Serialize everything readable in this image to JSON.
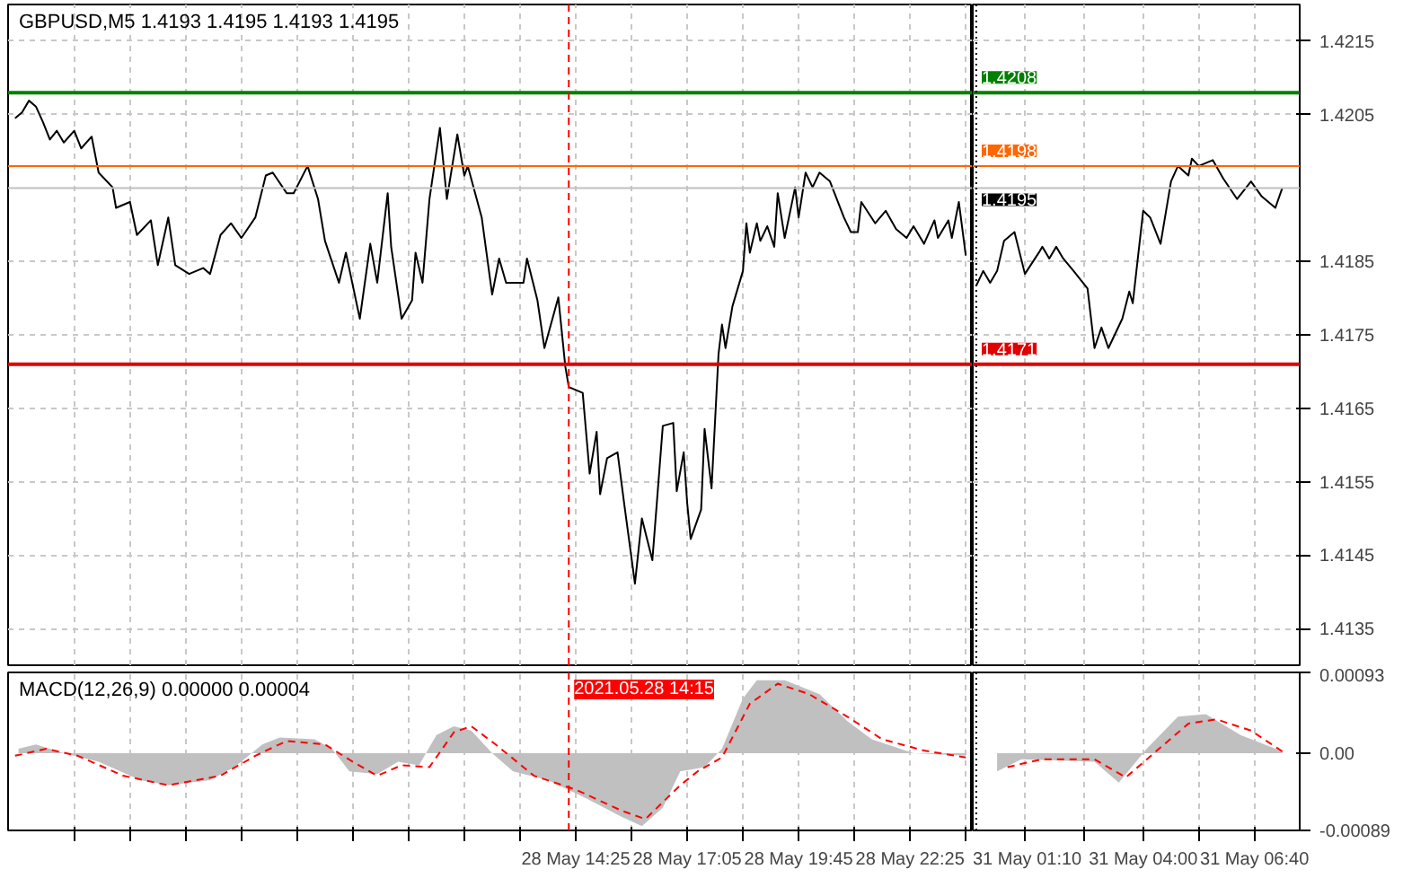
{
  "chart_data": [
    {
      "type": "line",
      "title": "GBPUSD,M5  1.4193 1.4195 1.4193 1.4195",
      "series": [
        {
          "color": "#000000",
          "line_style": "solid",
          "x": [
            "2021-05-28T01:00",
            "2021-05-28T01:10",
            "2021-05-28T01:20",
            "2021-05-28T01:30",
            "2021-05-28T01:40",
            "2021-05-28T01:50",
            "2021-05-28T02:00",
            "2021-05-28T02:10",
            "2021-05-28T02:25",
            "2021-05-28T02:35",
            "2021-05-28T02:50",
            "2021-05-28T03:00",
            "2021-05-28T03:20",
            "2021-05-28T03:25",
            "2021-05-28T03:45",
            "2021-05-28T03:55",
            "2021-05-28T04:15",
            "2021-05-28T04:25",
            "2021-05-28T04:40",
            "2021-05-28T04:50",
            "2021-05-28T05:10",
            "2021-05-28T05:30",
            "2021-05-28T05:40",
            "2021-05-28T05:55",
            "2021-05-28T06:10",
            "2021-05-28T06:25",
            "2021-05-28T06:45",
            "2021-05-28T07:00",
            "2021-05-28T07:10",
            "2021-05-28T07:30",
            "2021-05-28T07:40",
            "2021-05-28T08:00",
            "2021-05-28T08:15",
            "2021-05-28T08:25",
            "2021-05-28T08:45",
            "2021-05-28T08:55",
            "2021-05-28T09:15",
            "2021-05-28T09:30",
            "2021-05-28T09:40",
            "2021-05-28T09:55",
            "2021-05-28T10:00",
            "2021-05-28T10:15",
            "2021-05-28T10:30",
            "2021-05-28T10:35",
            "2021-05-28T10:45",
            "2021-05-28T10:55",
            "2021-05-28T11:10",
            "2021-05-28T11:20",
            "2021-05-28T11:35",
            "2021-05-28T11:45",
            "2021-05-28T11:50",
            "2021-05-28T12:10",
            "2021-05-28T12:25",
            "2021-05-28T12:35",
            "2021-05-28T12:45",
            "2021-05-28T13:10",
            "2021-05-28T13:15",
            "2021-05-28T13:30",
            "2021-05-28T13:40",
            "2021-05-28T14:00",
            "2021-05-28T14:10",
            "2021-05-28T14:15",
            "2021-05-28T14:35",
            "2021-05-28T14:45",
            "2021-05-28T14:55",
            "2021-05-28T15:00",
            "2021-05-28T15:10",
            "2021-05-28T15:25",
            "2021-05-28T15:35",
            "2021-05-28T15:50",
            "2021-05-28T16:00",
            "2021-05-28T16:15",
            "2021-05-28T16:30",
            "2021-05-28T16:45",
            "2021-05-28T16:50",
            "2021-05-28T17:00",
            "2021-05-28T17:05",
            "2021-05-28T17:10",
            "2021-05-28T17:25",
            "2021-05-28T17:30",
            "2021-05-28T17:40",
            "2021-05-28T17:50",
            "2021-05-28T17:55",
            "2021-05-28T18:00",
            "2021-05-28T18:10",
            "2021-05-28T18:25",
            "2021-05-28T18:30",
            "2021-05-28T18:35",
            "2021-05-28T18:45",
            "2021-05-28T18:50",
            "2021-05-28T19:00",
            "2021-05-28T19:10",
            "2021-05-28T19:15",
            "2021-05-28T19:25",
            "2021-05-28T19:40",
            "2021-05-28T19:45",
            "2021-05-28T19:55",
            "2021-05-28T20:05",
            "2021-05-28T20:15",
            "2021-05-28T20:30",
            "2021-05-28T20:50",
            "2021-05-28T21:00",
            "2021-05-28T21:10",
            "2021-05-28T21:15",
            "2021-05-28T21:35",
            "2021-05-28T21:50",
            "2021-05-28T22:05",
            "2021-05-28T22:20",
            "2021-05-28T22:30",
            "2021-05-28T22:45",
            "2021-05-28T23:00",
            "2021-05-28T23:05",
            "2021-05-28T23:20",
            "2021-05-28T23:25",
            "2021-05-28T23:35",
            "2021-05-28T23:45"
          ],
          "values": [
            1.42045,
            1.42053,
            1.42069,
            1.42061,
            1.4204,
            1.42016,
            1.42028,
            1.42012,
            1.42028,
            1.42004,
            1.4202,
            1.41971,
            1.41951,
            1.41923,
            1.41931,
            1.41886,
            1.41906,
            1.41845,
            1.4191,
            1.41845,
            1.41833,
            1.41841,
            1.41833,
            1.41886,
            1.41902,
            1.41882,
            1.4191,
            1.41967,
            1.41971,
            1.41943,
            1.41943,
            1.4198,
            1.41935,
            1.41878,
            1.41821,
            1.41862,
            1.41772,
            1.41874,
            1.41821,
            1.41943,
            1.4187,
            1.41772,
            1.41797,
            1.41862,
            1.41821,
            1.41935,
            1.42032,
            1.41935,
            1.42023,
            1.41967,
            1.4198,
            1.4191,
            1.41805,
            1.41854,
            1.41821,
            1.41821,
            1.41854,
            1.41797,
            1.41732,
            1.41801,
            1.41707,
            1.41679,
            1.41671,
            1.41561,
            1.41618,
            1.41533,
            1.41582,
            1.4159,
            1.41517,
            1.41411,
            1.415,
            1.41443,
            1.41626,
            1.4163,
            1.41537,
            1.4159,
            1.41521,
            1.41472,
            1.41512,
            1.41622,
            1.41541,
            1.41724,
            1.41764,
            1.41732,
            1.41789,
            1.41837,
            1.41902,
            1.41862,
            1.41902,
            1.41878,
            1.41898,
            1.4187,
            1.41943,
            1.41882,
            1.41951,
            1.4191,
            1.41971,
            1.41951,
            1.41971,
            1.41959,
            1.4191,
            1.4189,
            1.4189,
            1.41931,
            1.41902,
            1.41919,
            1.41894,
            1.41882,
            1.41898,
            1.41874,
            1.41906,
            1.41882,
            1.41906,
            1.41882,
            1.41931,
            1.41858
          ]
        }
      ],
      "xlim": [
        "2021-05-28T00:50",
        "2021-05-28T23:55"
      ],
      "ylim": [
        1.413,
        1.422
      ],
      "xticks": [
        {
          "value": "2021-05-28T02:25",
          "label": null
        },
        {
          "value": "2021-05-28T03:45",
          "label": null
        },
        {
          "value": "2021-05-28T05:05",
          "label": null
        },
        {
          "value": "2021-05-28T06:25",
          "label": null
        },
        {
          "value": "2021-05-28T07:45",
          "label": null
        },
        {
          "value": "2021-05-28T09:05",
          "label": null
        },
        {
          "value": "2021-05-28T10:25",
          "label": null
        },
        {
          "value": "2021-05-28T11:45",
          "label": null
        },
        {
          "value": "2021-05-28T13:05",
          "label": null
        },
        {
          "value": "2021-05-28T14:25",
          "label": null
        },
        {
          "value": "2021-05-28T15:45",
          "label": null
        },
        {
          "value": "2021-05-28T17:05",
          "label": null
        },
        {
          "value": "2021-05-28T18:25",
          "label": null
        },
        {
          "value": "2021-05-28T19:45",
          "label": null
        },
        {
          "value": "2021-05-28T21:05",
          "label": null
        },
        {
          "value": "2021-05-28T22:25",
          "label": null
        },
        {
          "value": "2021-05-28T23:45",
          "label": null
        }
      ],
      "yticks": [
        1.4135,
        1.4145,
        1.4155,
        1.4165,
        1.4175,
        1.4185,
        1.4205,
        1.4215
      ],
      "grid": true,
      "tick_labels": false,
      "ref_lines": [
        {
          "axis": "y",
          "value": 1.4208,
          "color": "#008000",
          "line_style": "solid"
        },
        {
          "axis": "y",
          "value": 1.4198,
          "color": "#ff6600",
          "line_style": "solid"
        },
        {
          "axis": "y",
          "value": 1.4195,
          "color": "#c0c0c0",
          "line_style": "solid"
        },
        {
          "axis": "y",
          "value": 1.4171,
          "color": "#e00000",
          "line_style": "solid"
        },
        {
          "axis": "x",
          "value": "2021-05-28T14:15",
          "color": "#ff0000",
          "line_style": "dashed"
        }
      ]
    },
    {
      "type": "line",
      "series": [
        {
          "color": "#000000",
          "line_style": "solid",
          "x": [
            "2021-05-31T00:00",
            "2021-05-31T00:10",
            "2021-05-31T00:20",
            "2021-05-31T00:30",
            "2021-05-31T00:40",
            "2021-05-31T00:55",
            "2021-05-31T01:10",
            "2021-05-31T01:30",
            "2021-05-31T01:35",
            "2021-05-31T01:45",
            "2021-05-31T01:55",
            "2021-05-31T02:05",
            "2021-05-31T02:20",
            "2021-05-31T02:40",
            "2021-05-31T02:50",
            "2021-05-31T03:00",
            "2021-05-31T03:10",
            "2021-05-31T03:30",
            "2021-05-31T03:40",
            "2021-05-31T03:45",
            "2021-05-31T04:00",
            "2021-05-31T04:10",
            "2021-05-31T04:25",
            "2021-05-31T04:40",
            "2021-05-31T04:50",
            "2021-05-31T05:05",
            "2021-05-31T05:10",
            "2021-05-31T05:20",
            "2021-05-31T05:40",
            "2021-05-31T05:55",
            "2021-05-31T06:15",
            "2021-05-31T06:35",
            "2021-05-31T06:50",
            "2021-05-31T07:10",
            "2021-05-31T07:20"
          ],
          "values": [
            1.41817,
            1.41837,
            1.41821,
            1.41837,
            1.41878,
            1.4189,
            1.41833,
            1.41862,
            1.4187,
            1.41854,
            1.4187,
            1.41854,
            1.41837,
            1.41813,
            1.41732,
            1.4176,
            1.41732,
            1.41772,
            1.41809,
            1.41793,
            1.41919,
            1.4191,
            1.41874,
            1.41959,
            1.4198,
            1.41967,
            1.4199,
            1.4198,
            1.41988,
            1.41963,
            1.41935,
            1.41959,
            1.41939,
            1.41923,
            1.4195
          ]
        }
      ],
      "xlim": [
        "2021-05-30T23:55",
        "2021-05-31T07:45"
      ],
      "ylim": [
        1.413,
        1.422
      ],
      "xticks": [
        {
          "value": "2021-05-31T01:10",
          "label": null
        },
        {
          "value": "2021-05-31T02:35",
          "label": null
        },
        {
          "value": "2021-05-31T04:00",
          "label": null
        },
        {
          "value": "2021-05-31T05:20",
          "label": null
        },
        {
          "value": "2021-05-31T06:40",
          "label": null
        }
      ],
      "yticks": [
        1.4135,
        1.4145,
        1.4155,
        1.4165,
        1.4175,
        1.4185,
        1.4205,
        1.4215
      ],
      "grid": true,
      "tick_labels": "y",
      "ref_lines": [
        {
          "axis": "y",
          "value": 1.4208,
          "label": "1.4208",
          "color": "#008000",
          "line_style": "solid"
        },
        {
          "axis": "y",
          "value": 1.4198,
          "label": "1.4198",
          "color": "#ff6600",
          "line_style": "solid"
        },
        {
          "axis": "y",
          "value": 1.4195,
          "label": "1.4195",
          "color": "#c0c0c0",
          "line_style": "solid"
        },
        {
          "axis": "y",
          "value": 1.4171,
          "label": "1.4171",
          "color": "#e00000",
          "line_style": "solid"
        },
        {
          "axis": "x",
          "value": "2021-05-31T00:00",
          "color": "#000000",
          "line_style": "dotted"
        }
      ]
    },
    {
      "type": "area",
      "title": "MACD(12,26,9) 0.00000 0.00004",
      "series": [
        {
          "type": "area",
          "color": "#c0c0c0",
          "x": [
            "2021-05-28T01:05",
            "2021-05-28T01:30",
            "2021-05-28T02:10",
            "2021-05-28T03:00",
            "2021-05-28T04:00",
            "2021-05-28T04:40",
            "2021-05-28T05:40",
            "2021-05-28T06:15",
            "2021-05-28T06:55",
            "2021-05-28T07:20",
            "2021-05-28T08:10",
            "2021-05-28T08:35",
            "2021-05-28T09:00",
            "2021-05-28T09:40",
            "2021-05-28T10:10",
            "2021-05-28T10:40",
            "2021-05-28T11:05",
            "2021-05-28T11:30",
            "2021-05-28T11:55",
            "2021-05-28T12:25",
            "2021-05-28T12:55",
            "2021-05-28T13:45",
            "2021-05-28T14:40",
            "2021-05-28T15:30",
            "2021-05-28T16:00",
            "2021-05-28T16:30",
            "2021-05-28T16:55",
            "2021-05-28T17:30",
            "2021-05-28T17:55",
            "2021-05-28T18:25",
            "2021-05-28T18:45",
            "2021-05-28T19:25",
            "2021-05-28T20:15",
            "2021-05-28T20:55",
            "2021-05-28T21:30",
            "2021-05-28T22:30",
            "2021-05-28T23:45"
          ],
          "values": [
            5e-05,
            0.0001,
            0,
            -0.0001,
            -0.00031,
            -0.00037,
            -0.00031,
            -0.00016,
            0.0001,
            0.00018,
            0.00016,
            5e-05,
            -0.00021,
            -0.00024,
            -0.0001,
            -0.00014,
            0.00021,
            0.00031,
            0.00026,
            0,
            -0.00021,
            -0.00031,
            -0.00052,
            -0.00073,
            -0.00084,
            -0.00063,
            -0.00021,
            -0.00016,
            5e-05,
            0.00063,
            0.00084,
            0.00084,
            0.00068,
            0.00037,
            0.00016,
            0,
            -3e-05
          ]
        },
        {
          "type": "line",
          "color": "#ff0000",
          "line_style": "dashed",
          "x": [
            "2021-05-28T01:00",
            "2021-05-28T01:45",
            "2021-05-28T02:30",
            "2021-05-28T03:35",
            "2021-05-28T04:40",
            "2021-05-28T05:55",
            "2021-05-28T06:45",
            "2021-05-28T07:30",
            "2021-05-28T08:25",
            "2021-05-28T09:05",
            "2021-05-28T09:40",
            "2021-05-28T10:15",
            "2021-05-28T10:55",
            "2021-05-28T11:30",
            "2021-05-28T11:55",
            "2021-05-28T12:30",
            "2021-05-28T13:25",
            "2021-05-28T14:25",
            "2021-05-28T15:30",
            "2021-05-28T16:05",
            "2021-05-28T16:55",
            "2021-05-28T17:20",
            "2021-05-28T17:55",
            "2021-05-28T18:35",
            "2021-05-28T19:15",
            "2021-05-28T20:00",
            "2021-05-28T20:55",
            "2021-05-28T21:45",
            "2021-05-28T22:45",
            "2021-05-28T23:45"
          ],
          "values": [
            -3e-05,
            5e-05,
            -3e-05,
            -0.00026,
            -0.00037,
            -0.00026,
            -3e-05,
            0.00014,
            0.0001,
            -0.0001,
            -0.00026,
            -0.00014,
            -0.00016,
            0.00024,
            0.00031,
            0.0001,
            -0.00026,
            -0.00042,
            -0.00066,
            -0.00076,
            -0.00037,
            -0.00021,
            -5e-05,
            0.00057,
            0.0008,
            0.00068,
            0.00042,
            0.00016,
            3e-05,
            -5e-05
          ]
        }
      ],
      "xlim": [
        "2021-05-28T00:50",
        "2021-05-28T23:55"
      ],
      "ylim": [
        -0.00089,
        0.00093
      ],
      "xticks": [
        {
          "value": "2021-05-28T02:25",
          "label": null
        },
        {
          "value": "2021-05-28T03:45",
          "label": null
        },
        {
          "value": "2021-05-28T05:05",
          "label": null
        },
        {
          "value": "2021-05-28T06:25",
          "label": null
        },
        {
          "value": "2021-05-28T07:45",
          "label": null
        },
        {
          "value": "2021-05-28T09:05",
          "label": null
        },
        {
          "value": "2021-05-28T10:25",
          "label": null
        },
        {
          "value": "2021-05-28T11:45",
          "label": null
        },
        {
          "value": "2021-05-28T13:05",
          "label": null
        },
        {
          "value": "2021-05-28T14:25",
          "label": "28 May 14:25"
        },
        {
          "value": "2021-05-28T15:45",
          "label": null
        },
        {
          "value": "2021-05-28T17:05",
          "label": "28 May 17:05"
        },
        {
          "value": "2021-05-28T18:25",
          "label": null
        },
        {
          "value": "2021-05-28T19:45",
          "label": "28 May 19:45"
        },
        {
          "value": "2021-05-28T21:05",
          "label": null
        },
        {
          "value": "2021-05-28T22:25",
          "label": "28 May 22:25"
        },
        {
          "value": "2021-05-28T23:45",
          "label": null
        }
      ],
      "grid": "x",
      "tick_labels": "x",
      "ref_lines": [
        {
          "axis": "x",
          "value": "2021-05-28T14:15",
          "label": "2021.05.28 14:15",
          "color": "#ff0000",
          "line_style": "dashed"
        }
      ]
    },
    {
      "type": "area",
      "series": [
        {
          "type": "area",
          "color": "#c0c0c0",
          "x": [
            "2021-05-31T00:30",
            "2021-05-31T01:05",
            "2021-05-31T02:50",
            "2021-05-31T03:25",
            "2021-05-31T04:05",
            "2021-05-31T04:50",
            "2021-05-31T05:30",
            "2021-05-31T06:20",
            "2021-05-31T07:20"
          ],
          "values": [
            -0.00021,
            -7e-05,
            -0.0001,
            -0.00034,
            5e-05,
            0.00042,
            0.00045,
            0.00021,
            2e-05
          ]
        },
        {
          "type": "line",
          "color": "#ff0000",
          "line_style": "dashed",
          "x": [
            "2021-05-31T00:45",
            "2021-05-31T01:35",
            "2021-05-31T02:50",
            "2021-05-31T03:35",
            "2021-05-31T04:30",
            "2021-05-31T05:05",
            "2021-05-31T05:45",
            "2021-05-31T06:35",
            "2021-05-31T07:20"
          ],
          "values": [
            -0.00016,
            -7e-05,
            -7e-05,
            -0.00028,
            0.0001,
            0.00034,
            0.00039,
            0.00026,
            2e-05
          ]
        }
      ],
      "xlim": [
        "2021-05-30T23:55",
        "2021-05-31T07:45"
      ],
      "ylim": [
        -0.00089,
        0.00093
      ],
      "xticks": [
        {
          "value": "2021-05-31T01:10",
          "label": "31 May 01:10"
        },
        {
          "value": "2021-05-31T02:35",
          "label": null
        },
        {
          "value": "2021-05-31T04:00",
          "label": "31 May 04:00"
        },
        {
          "value": "2021-05-31T05:20",
          "label": null
        },
        {
          "value": "2021-05-31T06:40",
          "label": "31 May 06:40"
        }
      ],
      "yticks": [
        -0.00089,
        {
          "value": 0,
          "label": "0.00"
        },
        0.00093
      ],
      "grid": "x",
      "ref_lines": [
        {
          "axis": "x",
          "value": "2021-05-31T00:00",
          "color": "#000000",
          "line_style": "dotted"
        }
      ]
    }
  ]
}
